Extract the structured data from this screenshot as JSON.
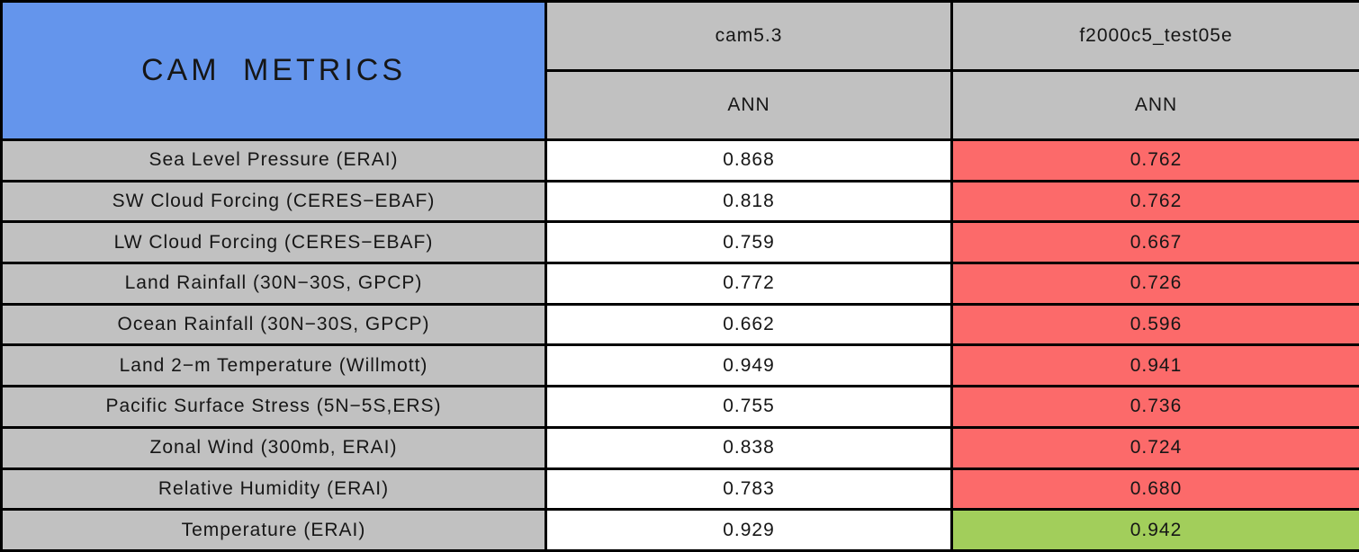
{
  "title_cell": "CAM METRICS",
  "columns": [
    {
      "label": "cam5.3",
      "sub": "ANN"
    },
    {
      "label": "f2000c5_test05e",
      "sub": "ANN"
    }
  ],
  "rows": [
    {
      "metric": "Sea Level Pressure (ERAI)",
      "values": [
        "0.868",
        "0.762"
      ],
      "highlight": "red"
    },
    {
      "metric": "SW Cloud Forcing (CERES−EBAF)",
      "values": [
        "0.818",
        "0.762"
      ],
      "highlight": "red"
    },
    {
      "metric": "LW Cloud Forcing (CERES−EBAF)",
      "values": [
        "0.759",
        "0.667"
      ],
      "highlight": "red"
    },
    {
      "metric": "Land Rainfall (30N−30S, GPCP)",
      "values": [
        "0.772",
        "0.726"
      ],
      "highlight": "red"
    },
    {
      "metric": "Ocean Rainfall (30N−30S, GPCP)",
      "values": [
        "0.662",
        "0.596"
      ],
      "highlight": "red"
    },
    {
      "metric": "Land 2−m Temperature (Willmott)",
      "values": [
        "0.949",
        "0.941"
      ],
      "highlight": "red"
    },
    {
      "metric": "Pacific Surface Stress (5N−5S,ERS)",
      "values": [
        "0.755",
        "0.736"
      ],
      "highlight": "red"
    },
    {
      "metric": "Zonal Wind (300mb, ERAI)",
      "values": [
        "0.838",
        "0.724"
      ],
      "highlight": "red"
    },
    {
      "metric": "Relative Humidity (ERAI)",
      "values": [
        "0.783",
        "0.680"
      ],
      "highlight": "red"
    },
    {
      "metric": "Temperature (ERAI)",
      "values": [
        "0.929",
        "0.942"
      ],
      "highlight": "green"
    }
  ],
  "colors": {
    "title_blue": "#6495EC",
    "label_gray": "#C1C1C1",
    "cell_white": "#FFFFFF",
    "red": "#FC6A6A",
    "green": "#A2CE5B",
    "border_black": "#000000"
  },
  "chart_data": {
    "type": "table",
    "title": "CAM METRICS",
    "column_groups": [
      "cam5.3",
      "f2000c5_test05e"
    ],
    "subcolumn": "ANN",
    "rows": [
      {
        "metric": "Sea Level Pressure (ERAI)",
        "cam5_3": 0.868,
        "f2000c5_test05e": 0.762,
        "test_cell_color": "red"
      },
      {
        "metric": "SW Cloud Forcing (CERES-EBAF)",
        "cam5_3": 0.818,
        "f2000c5_test05e": 0.762,
        "test_cell_color": "red"
      },
      {
        "metric": "LW Cloud Forcing (CERES-EBAF)",
        "cam5_3": 0.759,
        "f2000c5_test05e": 0.667,
        "test_cell_color": "red"
      },
      {
        "metric": "Land Rainfall (30N-30S, GPCP)",
        "cam5_3": 0.772,
        "f2000c5_test05e": 0.726,
        "test_cell_color": "red"
      },
      {
        "metric": "Ocean Rainfall (30N-30S, GPCP)",
        "cam5_3": 0.662,
        "f2000c5_test05e": 0.596,
        "test_cell_color": "red"
      },
      {
        "metric": "Land 2-m Temperature (Willmott)",
        "cam5_3": 0.949,
        "f2000c5_test05e": 0.941,
        "test_cell_color": "red"
      },
      {
        "metric": "Pacific Surface Stress (5N-5S,ERS)",
        "cam5_3": 0.755,
        "f2000c5_test05e": 0.736,
        "test_cell_color": "red"
      },
      {
        "metric": "Zonal Wind (300mb, ERAI)",
        "cam5_3": 0.838,
        "f2000c5_test05e": 0.724,
        "test_cell_color": "red"
      },
      {
        "metric": "Relative Humidity (ERAI)",
        "cam5_3": 0.783,
        "f2000c5_test05e": 0.68,
        "test_cell_color": "red"
      },
      {
        "metric": "Temperature (ERAI)",
        "cam5_3": 0.929,
        "f2000c5_test05e": 0.942,
        "test_cell_color": "green"
      }
    ]
  }
}
